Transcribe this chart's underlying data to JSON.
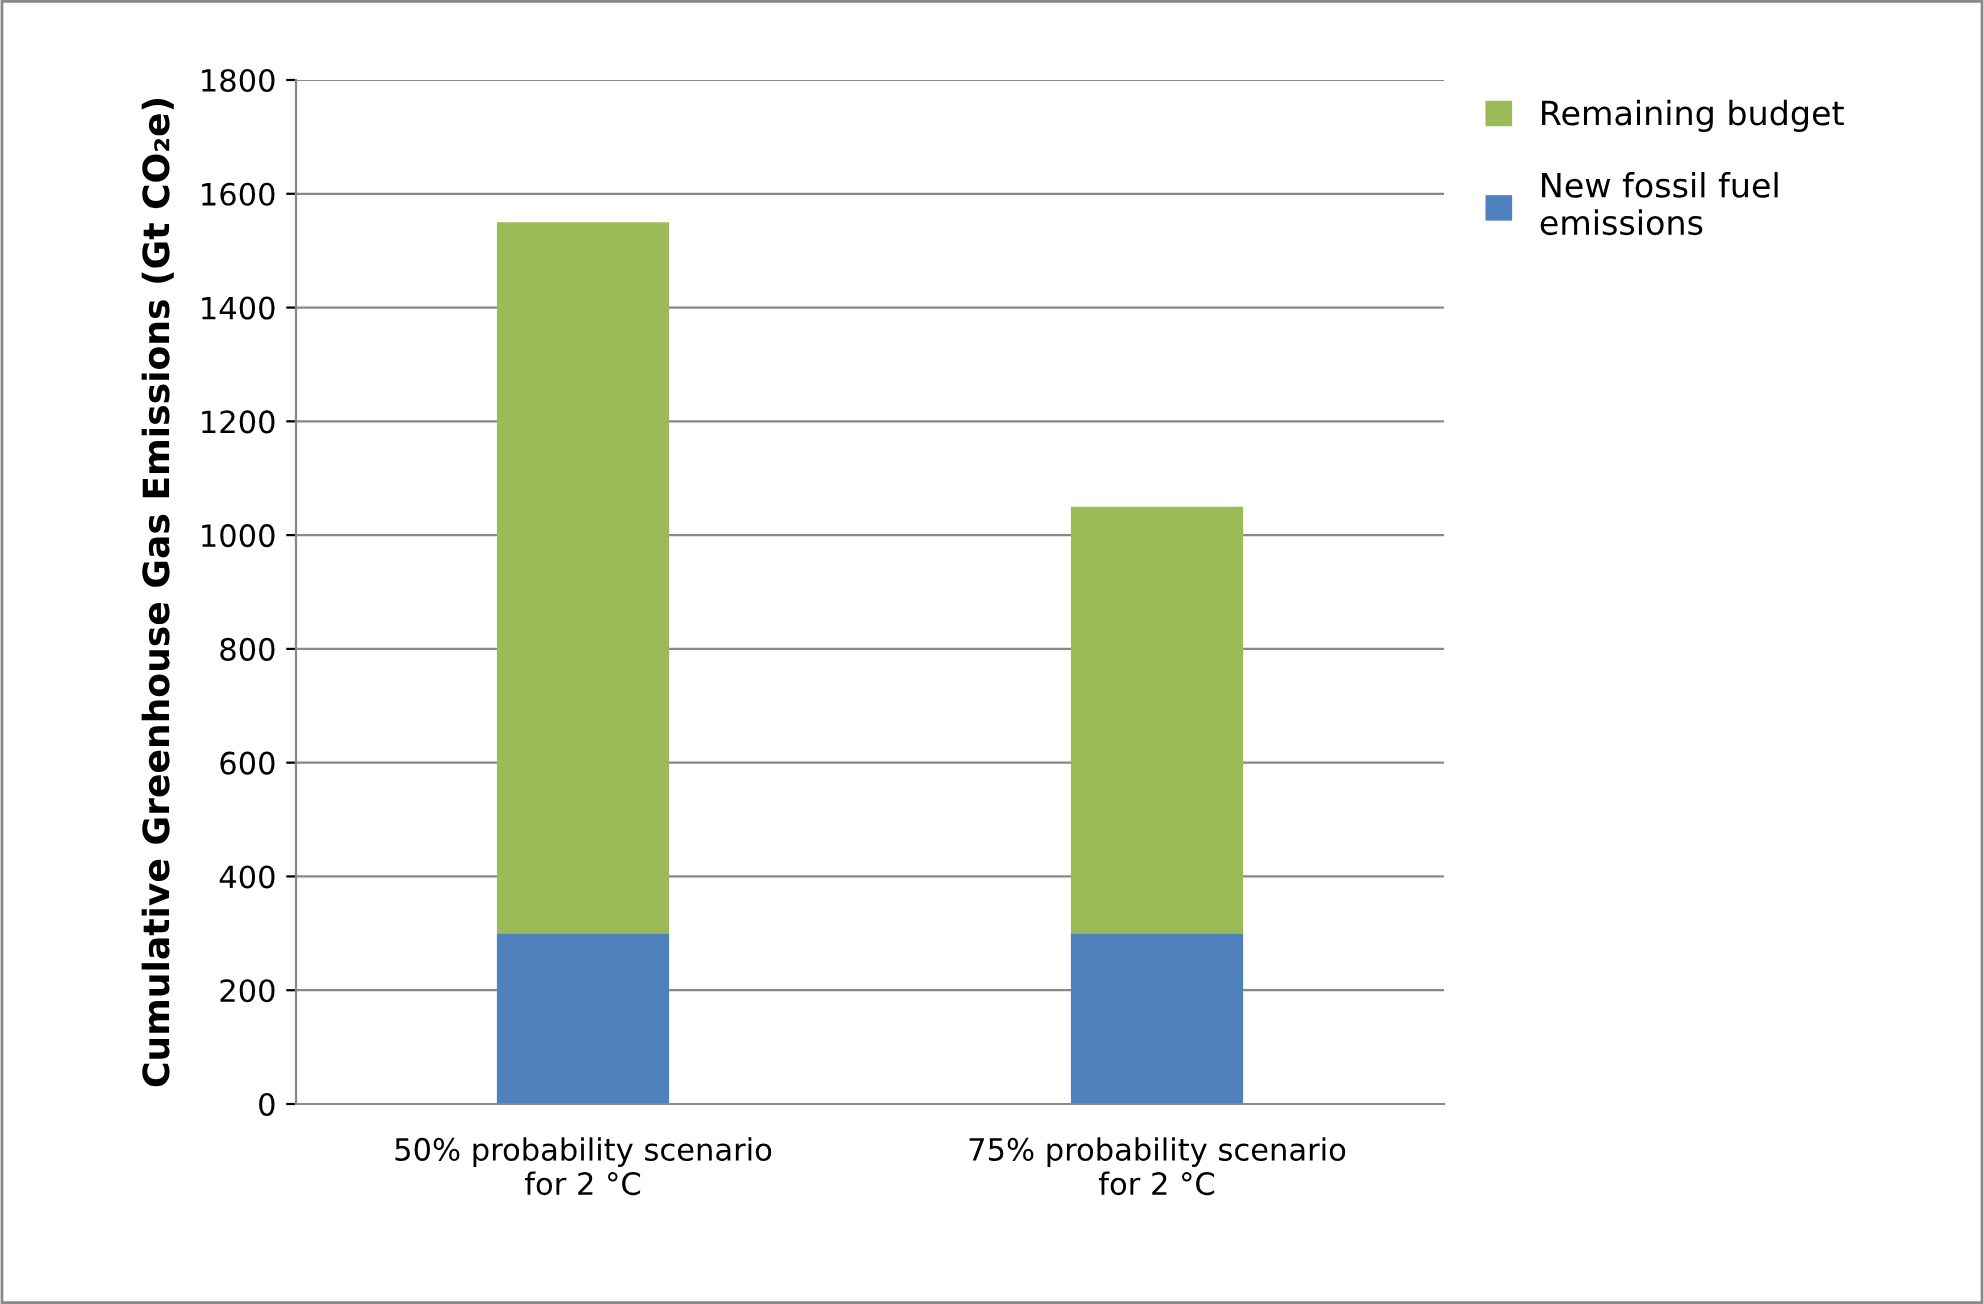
{
  "chart_data": {
    "type": "bar",
    "stacked": true,
    "ylabel": "Cumulative Greenhouse Gas Emissions (Gt CO₂e)",
    "categories": [
      "50% probability scenario\nfor 2 °C",
      "75% probability scenario\nfor 2 °C"
    ],
    "series": [
      {
        "name": "New fossil fuel\nemissions",
        "color": "#4f81bd",
        "values": [
          300,
          300
        ]
      },
      {
        "name": "Remaining budget",
        "color": "#9bbb59",
        "values": [
          1250,
          750
        ]
      }
    ],
    "ylim": [
      0,
      1800
    ],
    "yticks": [
      0,
      200,
      400,
      600,
      800,
      1000,
      1200,
      1400,
      1600,
      1800
    ],
    "grid": "y",
    "legend": "right"
  }
}
